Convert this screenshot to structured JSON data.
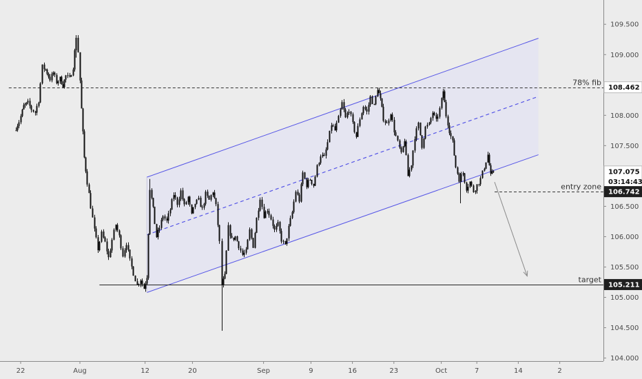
{
  "chart_data": {
    "type": "candlestick",
    "title": "",
    "xlabel": "",
    "ylabel": "",
    "ylim": [
      103.95,
      109.9
    ],
    "y_ticks": [
      "109.500",
      "109.000",
      "108.500",
      "108.000",
      "107.500",
      "107.000",
      "106.500",
      "106.000",
      "105.500",
      "105.000",
      "104.500",
      "104.000"
    ],
    "x_ticks": [
      {
        "label": "22",
        "day": -10
      },
      {
        "label": "Aug",
        "day": 0
      },
      {
        "label": "12",
        "day": 11
      },
      {
        "label": "20",
        "day": 19
      },
      {
        "label": "Sep",
        "day": 31
      },
      {
        "label": "9",
        "day": 39
      },
      {
        "label": "16",
        "day": 46
      },
      {
        "label": "23",
        "day": 53
      },
      {
        "label": "Oct",
        "day": 61
      },
      {
        "label": "7",
        "day": 67
      },
      {
        "label": "14",
        "day": 74
      },
      {
        "label": "2",
        "day": 81
      }
    ],
    "price_path": [
      [
        -11.0,
        107.75
      ],
      [
        -10.3,
        107.9
      ],
      [
        -9.5,
        108.15
      ],
      [
        -8.8,
        108.2
      ],
      [
        -8.2,
        108.1
      ],
      [
        -7.6,
        108.05
      ],
      [
        -7.0,
        108.25
      ],
      [
        -6.4,
        108.8
      ],
      [
        -5.8,
        108.75
      ],
      [
        -5.1,
        108.6
      ],
      [
        -4.5,
        108.7
      ],
      [
        -4.0,
        108.55
      ],
      [
        -3.4,
        108.6
      ],
      [
        -2.9,
        108.5
      ],
      [
        -2.4,
        108.65
      ],
      [
        -1.8,
        108.6
      ],
      [
        -1.2,
        108.8
      ],
      [
        -0.7,
        109.3
      ],
      [
        -0.3,
        109.05
      ],
      [
        0.2,
        108.1
      ],
      [
        0.7,
        107.3
      ],
      [
        1.2,
        106.9
      ],
      [
        1.8,
        106.5
      ],
      [
        2.4,
        106.1
      ],
      [
        3.0,
        105.8
      ],
      [
        3.6,
        106.05
      ],
      [
        4.2,
        105.9
      ],
      [
        4.8,
        105.65
      ],
      [
        5.4,
        105.95
      ],
      [
        6.0,
        106.2
      ],
      [
        6.6,
        106.0
      ],
      [
        7.2,
        105.7
      ],
      [
        7.8,
        105.9
      ],
      [
        8.4,
        105.6
      ],
      [
        9.0,
        105.4
      ],
      [
        9.6,
        105.2
      ],
      [
        10.2,
        105.3
      ],
      [
        10.8,
        105.15
      ],
      [
        11.3,
        105.35
      ],
      [
        11.8,
        106.8
      ],
      [
        12.3,
        106.45
      ],
      [
        12.9,
        106.0
      ],
      [
        13.4,
        106.15
      ],
      [
        14.0,
        106.35
      ],
      [
        14.6,
        106.25
      ],
      [
        15.2,
        106.45
      ],
      [
        15.8,
        106.7
      ],
      [
        16.4,
        106.55
      ],
      [
        17.0,
        106.75
      ],
      [
        17.6,
        106.5
      ],
      [
        18.2,
        106.65
      ],
      [
        18.8,
        106.35
      ],
      [
        19.4,
        106.55
      ],
      [
        20.0,
        106.6
      ],
      [
        20.6,
        106.45
      ],
      [
        21.2,
        106.7
      ],
      [
        21.8,
        106.6
      ],
      [
        22.4,
        106.75
      ],
      [
        22.9,
        106.5
      ],
      [
        23.5,
        105.9
      ],
      [
        23.9,
        105.2
      ],
      [
        24.4,
        105.35
      ],
      [
        25.0,
        106.15
      ],
      [
        25.6,
        105.95
      ],
      [
        26.2,
        106.0
      ],
      [
        26.8,
        105.85
      ],
      [
        27.4,
        105.7
      ],
      [
        28.0,
        105.75
      ],
      [
        28.6,
        106.1
      ],
      [
        29.2,
        105.85
      ],
      [
        29.8,
        106.3
      ],
      [
        30.4,
        106.65
      ],
      [
        31.0,
        106.35
      ],
      [
        31.6,
        106.45
      ],
      [
        32.2,
        106.3
      ],
      [
        32.8,
        106.1
      ],
      [
        33.4,
        106.2
      ],
      [
        34.0,
        105.95
      ],
      [
        34.6,
        105.85
      ],
      [
        35.2,
        106.15
      ],
      [
        35.8,
        106.4
      ],
      [
        36.4,
        106.75
      ],
      [
        37.0,
        106.6
      ],
      [
        37.6,
        107.05
      ],
      [
        38.2,
        106.85
      ],
      [
        38.8,
        106.95
      ],
      [
        39.4,
        106.85
      ],
      [
        40.0,
        107.15
      ],
      [
        40.6,
        107.35
      ],
      [
        41.2,
        107.3
      ],
      [
        41.8,
        107.55
      ],
      [
        42.4,
        107.85
      ],
      [
        43.0,
        107.75
      ],
      [
        43.6,
        107.95
      ],
      [
        44.2,
        108.2
      ],
      [
        44.8,
        107.95
      ],
      [
        45.4,
        108.1
      ],
      [
        46.0,
        107.85
      ],
      [
        46.6,
        107.65
      ],
      [
        47.2,
        107.95
      ],
      [
        47.8,
        108.15
      ],
      [
        48.4,
        108.05
      ],
      [
        49.0,
        108.3
      ],
      [
        49.6,
        108.15
      ],
      [
        50.2,
        108.45
      ],
      [
        50.7,
        108.25
      ],
      [
        51.2,
        107.95
      ],
      [
        51.8,
        107.85
      ],
      [
        52.4,
        108.05
      ],
      [
        53.0,
        107.75
      ],
      [
        53.6,
        107.55
      ],
      [
        54.2,
        107.35
      ],
      [
        54.8,
        107.6
      ],
      [
        55.3,
        107.0
      ],
      [
        55.9,
        107.2
      ],
      [
        56.5,
        107.65
      ],
      [
        57.1,
        107.85
      ],
      [
        57.7,
        107.5
      ],
      [
        58.3,
        107.8
      ],
      [
        58.9,
        107.85
      ],
      [
        59.5,
        108.05
      ],
      [
        60.1,
        107.9
      ],
      [
        60.7,
        108.1
      ],
      [
        61.3,
        108.4
      ],
      [
        61.8,
        108.0
      ],
      [
        62.3,
        107.75
      ],
      [
        62.9,
        107.55
      ],
      [
        63.4,
        107.15
      ],
      [
        64.0,
        106.95
      ],
      [
        64.6,
        107.05
      ],
      [
        65.2,
        106.8
      ],
      [
        65.8,
        106.9
      ],
      [
        66.4,
        106.75
      ],
      [
        67.0,
        106.85
      ],
      [
        67.6,
        106.95
      ],
      [
        68.2,
        107.15
      ],
      [
        68.8,
        107.35
      ],
      [
        69.3,
        107.0
      ],
      [
        69.8,
        107.075
      ]
    ],
    "channel": {
      "start": {
        "day": 11.3,
        "lower": 105.08,
        "upper": 106.98
      },
      "end": {
        "day": 77.4,
        "lower": 107.35,
        "upper": 109.27
      }
    },
    "levels": [
      {
        "value": 108.462,
        "label": "108.462",
        "annotation": "78% fib",
        "style": "dashed",
        "from_day": -12
      },
      {
        "value": 106.742,
        "label": "106.742",
        "annotation": "entry zone",
        "style": "dashed",
        "from_day": 70
      },
      {
        "value": 105.211,
        "label": "105.211",
        "annotation": "target",
        "style": "solid",
        "from_day": 3.3
      }
    ],
    "current_price": {
      "value": 107.075,
      "label": "107.075",
      "countdown": "03:14:43"
    },
    "projection": {
      "from": {
        "day": 70,
        "price": 106.9
      },
      "to": {
        "day": 75.5,
        "price": 105.35
      }
    },
    "colors": {
      "channel_line": "#5555e6",
      "channel_fill": "#e4e4f2",
      "candle": "#111111",
      "badge_dark": "#1f1f1f",
      "badge_light": "#ffffff"
    }
  }
}
